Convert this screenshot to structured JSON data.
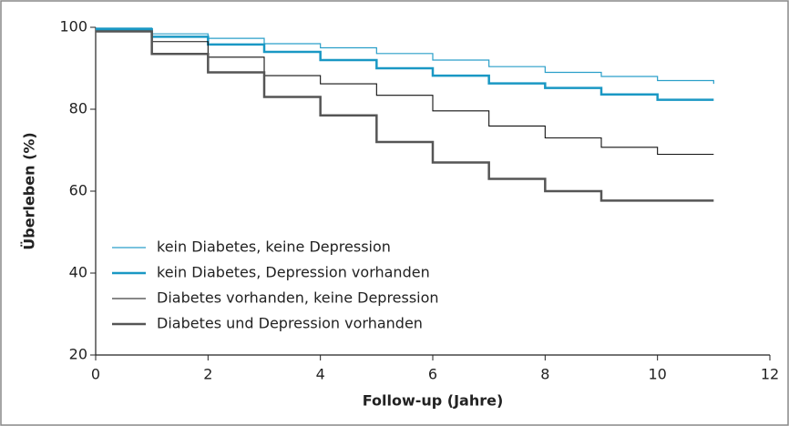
{
  "chart_data": {
    "type": "step",
    "x_label": "Follow-up (Jahre)",
    "y_label": "Überleben (%)",
    "x": [
      0,
      1,
      2,
      3,
      4,
      5,
      6,
      7,
      8,
      9,
      10,
      11
    ],
    "series": [
      {
        "name": "kein Diabetes, keine Depression",
        "color": "#2a9fc9",
        "width": 1.2,
        "values": [
          99.8,
          98.4,
          97.3,
          96,
          95,
          93.6,
          92,
          90.4,
          89,
          88,
          87,
          86.2
        ]
      },
      {
        "name": "kein Diabetes, Depression vorhanden",
        "color": "#1a98c4",
        "width": 2.5,
        "values": [
          99.5,
          97.7,
          95.8,
          94,
          92,
          90,
          88.2,
          86.3,
          85.2,
          83.6,
          82.3,
          82.3
        ]
      },
      {
        "name": "Diabetes vorhanden, keine Depression",
        "color": "#111111",
        "width": 1.1,
        "values": [
          99,
          96.5,
          92.7,
          88.2,
          86.2,
          83.4,
          79.6,
          75.9,
          73,
          70.7,
          69,
          69
        ]
      },
      {
        "name": "Diabetes und Depression vorhanden",
        "color": "#555555",
        "width": 2.5,
        "values": [
          99,
          93.5,
          89,
          83,
          78.5,
          72,
          67,
          63,
          60,
          57.7,
          57.7,
          57.7
        ]
      }
    ],
    "xlim": [
      0,
      12
    ],
    "xticks": [
      0,
      2,
      4,
      6,
      8,
      10,
      12
    ],
    "ylim": [
      20,
      100
    ],
    "yticks": [
      20,
      40,
      60,
      80,
      100
    ],
    "grid": false,
    "legend": "lower left"
  }
}
